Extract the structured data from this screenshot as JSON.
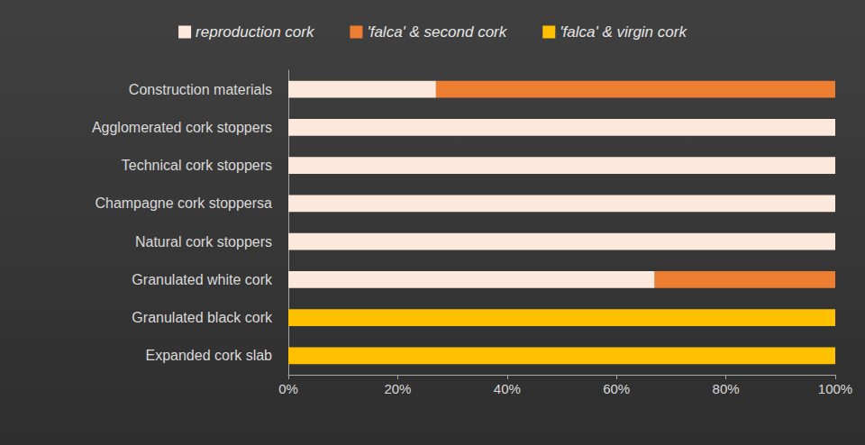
{
  "chart_data": {
    "type": "bar",
    "orientation": "horizontal",
    "stacked": true,
    "grid": false,
    "legend": "top",
    "categories": [
      "Construction materials",
      "Agglomerated cork stoppers",
      "Technical cork stoppers",
      "Champagne cork stoppersa",
      "Natural cork stoppers",
      "Granulated white cork",
      "Granulated black cork",
      "Expanded cork slab"
    ],
    "series": [
      {
        "name": "reproduction cork",
        "color": "#fce9dc",
        "values": [
          27,
          100,
          100,
          100,
          100,
          67,
          0,
          0
        ]
      },
      {
        "name": "'falca' & second cork",
        "color": "#ed7d31",
        "values": [
          73,
          0,
          0,
          0,
          0,
          33,
          0,
          0
        ]
      },
      {
        "name": "'falca' & virgin cork",
        "color": "#ffc000",
        "values": [
          0,
          0,
          0,
          0,
          0,
          0,
          100,
          100
        ]
      }
    ],
    "xlim": [
      0,
      100
    ],
    "xticks": [
      {
        "value": 0,
        "label": "0%"
      },
      {
        "value": 20,
        "label": "20%"
      },
      {
        "value": 40,
        "label": "40%"
      },
      {
        "value": 60,
        "label": "60%"
      },
      {
        "value": 80,
        "label": "80%"
      },
      {
        "value": 100,
        "label": "100%"
      }
    ]
  }
}
